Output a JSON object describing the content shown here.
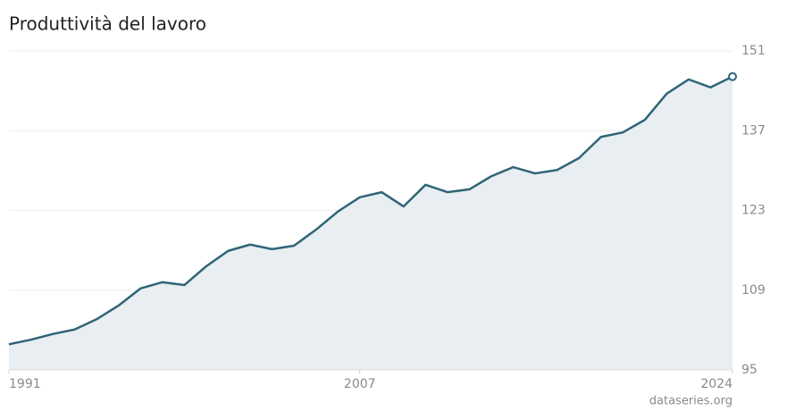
{
  "chart_data": {
    "type": "line",
    "title": "Produttività del lavoro",
    "source": "dataseries.org",
    "x": [
      1991,
      1992,
      1993,
      1994,
      1995,
      1996,
      1997,
      1998,
      1999,
      2000,
      2001,
      2002,
      2003,
      2004,
      2005,
      2006,
      2007,
      2008,
      2009,
      2010,
      2011,
      2012,
      2013,
      2014,
      2015,
      2016,
      2017,
      2018,
      2019,
      2020,
      2021,
      2022,
      2023,
      2024
    ],
    "values": [
      99.5,
      100.3,
      101.3,
      102.1,
      103.9,
      106.3,
      109.3,
      110.4,
      109.9,
      113.2,
      115.9,
      117.0,
      116.2,
      116.8,
      119.6,
      122.8,
      125.3,
      126.2,
      123.7,
      127.5,
      126.2,
      126.7,
      129.0,
      130.6,
      129.5,
      130.1,
      132.2,
      135.9,
      136.7,
      138.9,
      143.5,
      146.0,
      144.6,
      146.5
    ],
    "color": "#2f6577",
    "area_color": "#e8eef1",
    "xlim": [
      1991,
      2024
    ],
    "xticks": [
      1991,
      2007,
      2024
    ],
    "ylim": [
      95,
      151
    ],
    "yticks": [
      95,
      109,
      123,
      137,
      151
    ],
    "grid": true
  }
}
